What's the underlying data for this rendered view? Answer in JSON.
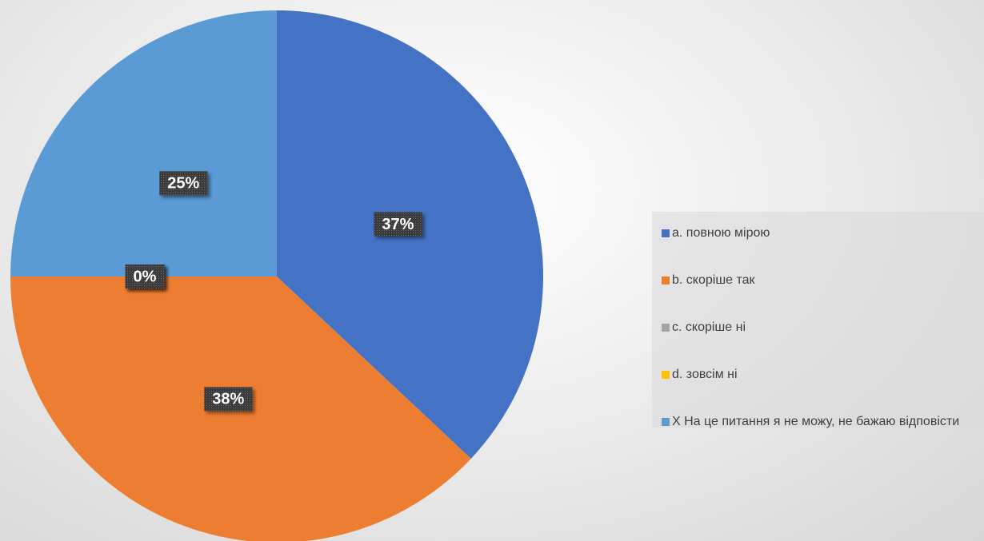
{
  "chart_data": {
    "type": "pie",
    "categories": [
      "a. повною мірою",
      "b. скоріше так",
      "c. скоріше ні",
      "d. зовсім ні",
      "X На це питання я не можу, не бажаю відповісти"
    ],
    "values": [
      37,
      38,
      0,
      0,
      25
    ],
    "value_labels": [
      "37%",
      "38%",
      "0%",
      "0%",
      "25%"
    ],
    "colors": [
      "#4472c4",
      "#ed7d31",
      "#a5a5a5",
      "#ffc000",
      "#5b9bd5"
    ],
    "legend": "right"
  }
}
